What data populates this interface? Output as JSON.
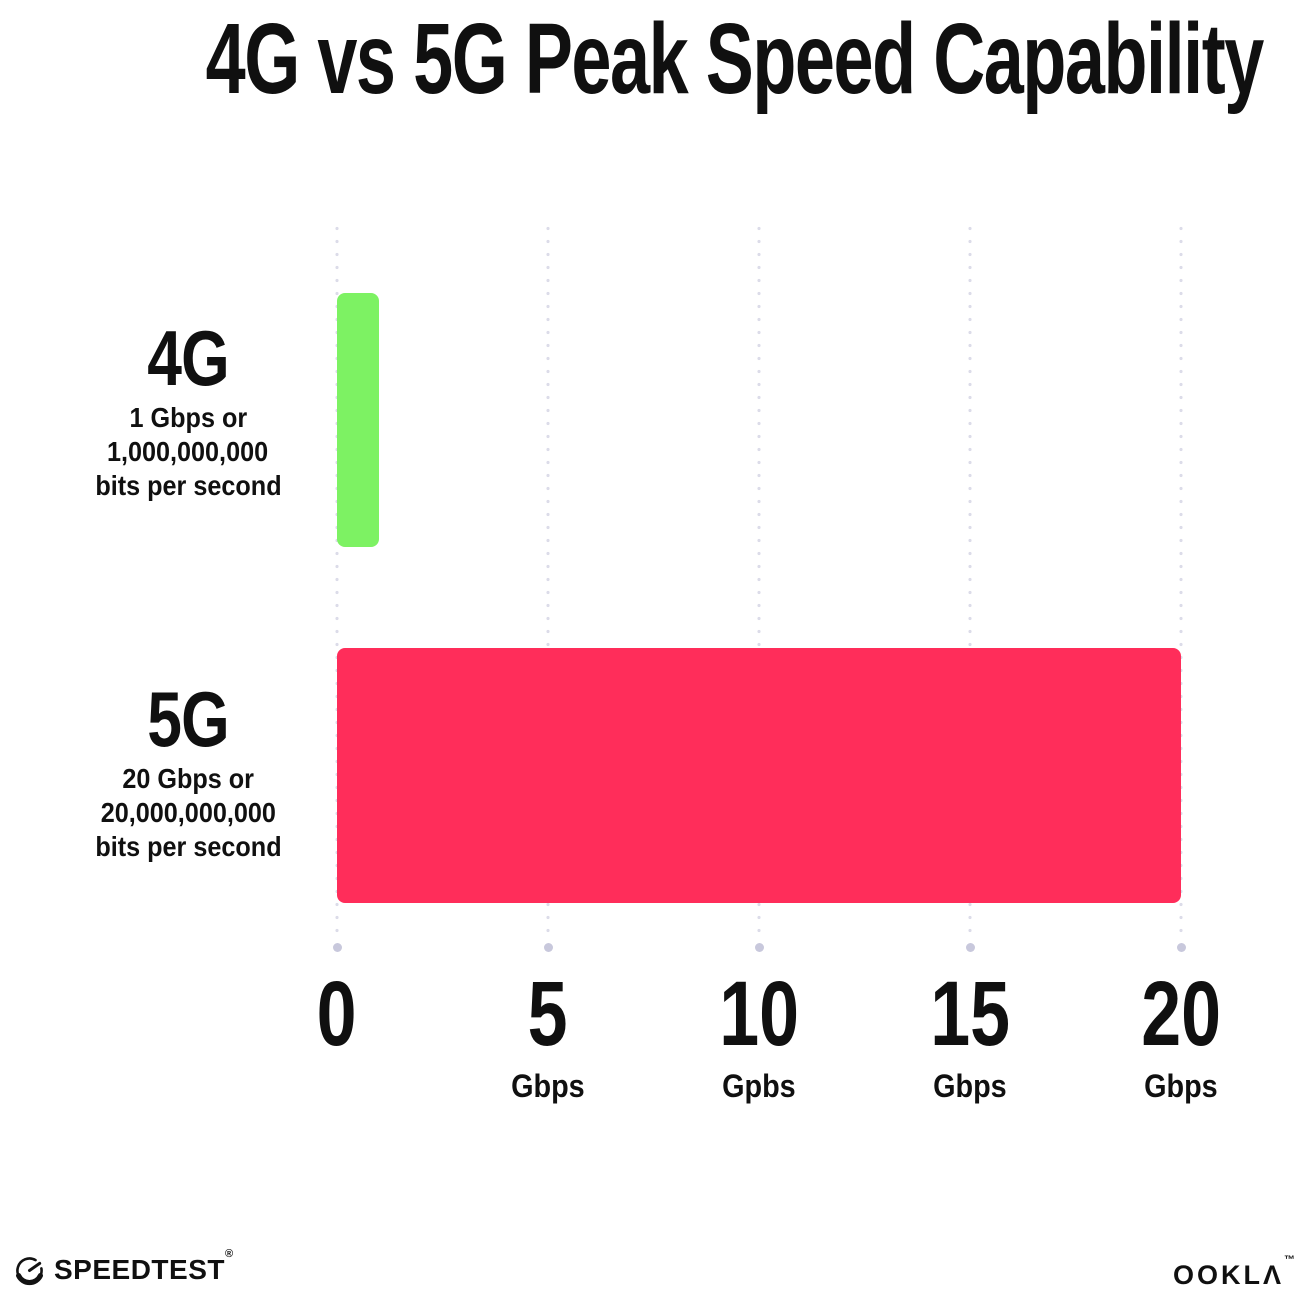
{
  "title": "4G vs 5G Peak Speed Capability",
  "colors": {
    "bar_4g": "#7DF263",
    "bar_5g": "#FF2D5A",
    "grid_dot": "#DCDCE9",
    "grid_dot_end": "#C8C8DC",
    "text": "#101010"
  },
  "chart_data": {
    "type": "bar",
    "orientation": "horizontal",
    "title": "4G vs 5G Peak Speed Capability",
    "categories": [
      "4G",
      "5G"
    ],
    "values": [
      1,
      20
    ],
    "value_unit": "Gbps",
    "xlim": [
      0,
      20
    ],
    "xticks": [
      0,
      5,
      10,
      15,
      20
    ],
    "xtick_labels": [
      "0",
      "5 Gbps",
      "10 Gpbs",
      "15 Gbps",
      "20 Gbps"
    ],
    "grid": "dotted vertical gridlines with round end dot",
    "legend": "none",
    "series_colors": [
      "#7DF263",
      "#FF2D5A"
    ],
    "annotations": [
      "4G: 1 Gbps or 1,000,000,000 bits per second",
      "5G: 20 Gbps or 20,000,000,000 bits per second"
    ]
  },
  "rows": [
    {
      "label": "4G",
      "sublines": [
        "1 Gbps or",
        "1,000,000,000",
        "bits per second"
      ],
      "value": 1
    },
    {
      "label": "5G",
      "sublines": [
        "20 Gbps or",
        "20,000,000,000",
        "bits per second"
      ],
      "value": 20
    }
  ],
  "x_axis": {
    "ticks": [
      {
        "number": "0",
        "unit": ""
      },
      {
        "number": "5",
        "unit": "Gbps"
      },
      {
        "number": "10",
        "unit": "Gpbs"
      },
      {
        "number": "15",
        "unit": "Gbps"
      },
      {
        "number": "20",
        "unit": "Gbps"
      }
    ]
  },
  "footer": {
    "speedtest": "SPEEDTEST",
    "speedtest_mark": "®",
    "ookla": "OOKLΛ",
    "ookla_mark": "™"
  }
}
